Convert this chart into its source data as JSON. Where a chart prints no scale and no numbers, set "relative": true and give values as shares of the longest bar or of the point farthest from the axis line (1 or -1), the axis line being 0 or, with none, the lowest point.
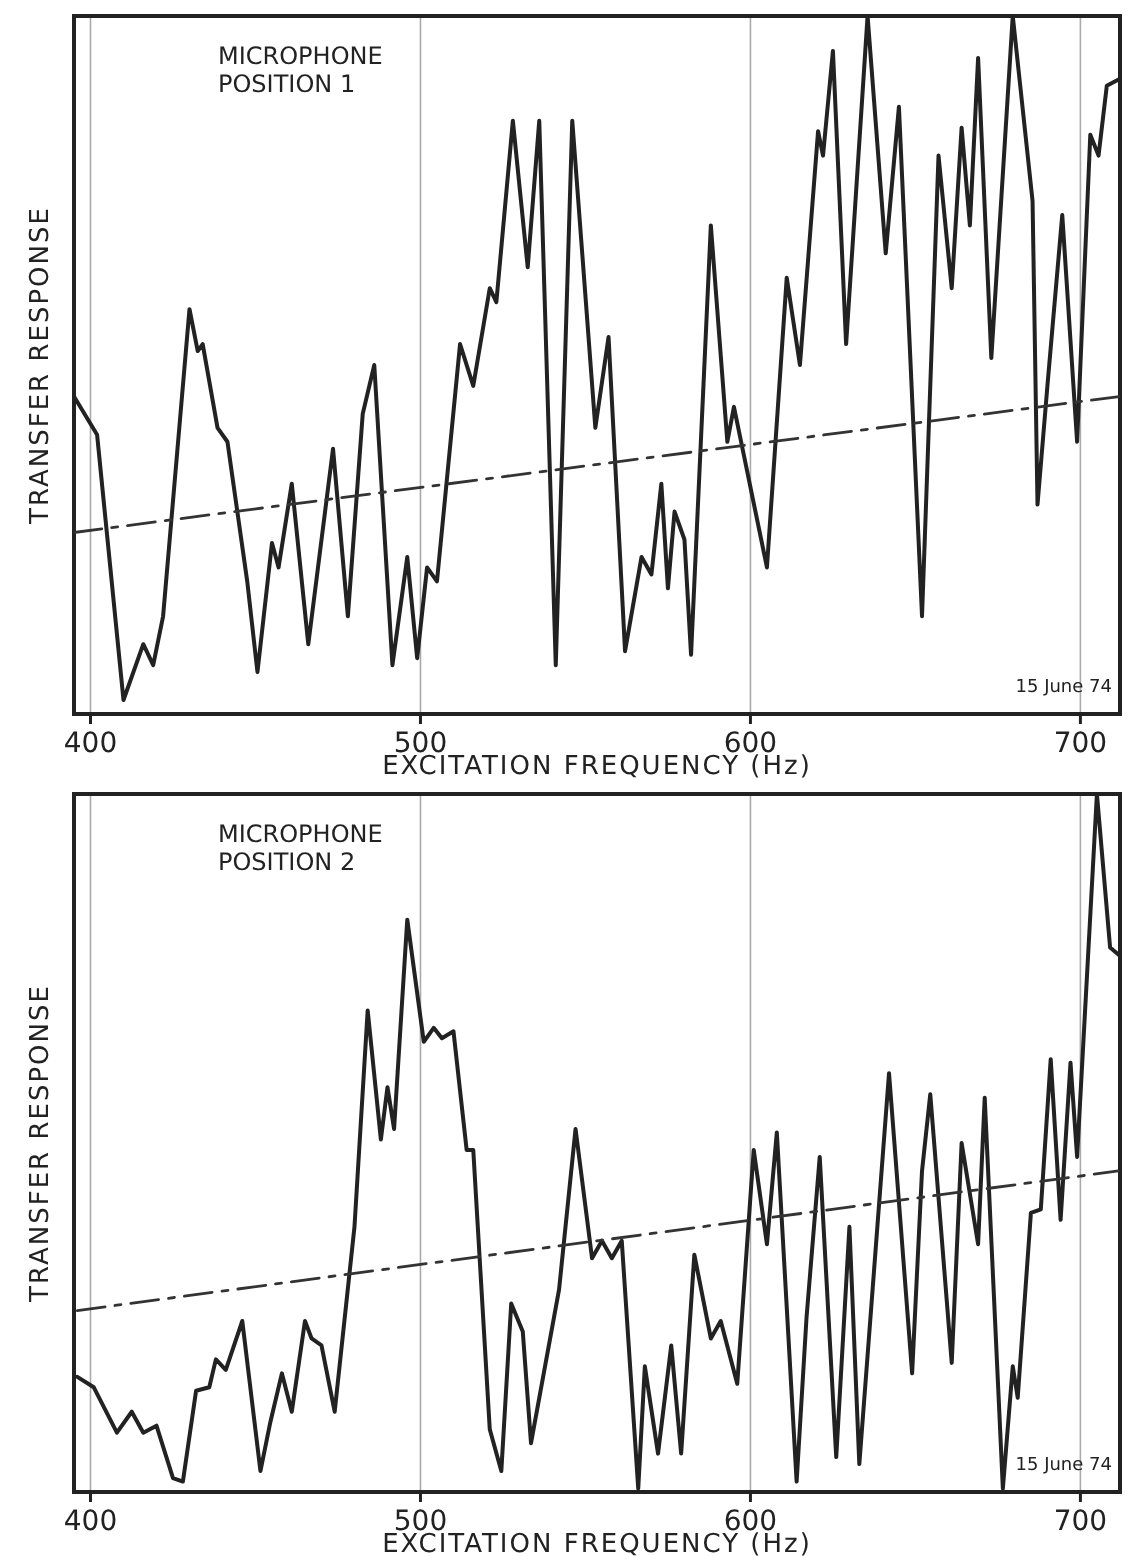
{
  "chart_data": [
    {
      "type": "line",
      "relative": true,
      "xlabel": "EXCITATION FREQUENCY (Hz)",
      "ylabel": "TRANSFER RESPONSE",
      "xlim": [
        395,
        712
      ],
      "xticks": [
        400,
        500,
        600,
        700
      ],
      "grid": "x",
      "marker": "none",
      "annotations": [
        "MICROPHONE POSITION 1",
        "15 June 74"
      ],
      "series": [
        {
          "color": "#222222",
          "line_style": "solid",
          "x": [
            395,
            402,
            410,
            416,
            419,
            422,
            430,
            432.5,
            434,
            438.5,
            441.5,
            447.5,
            450.6,
            455,
            457,
            461,
            466,
            473.5,
            478,
            482.5,
            486,
            491.5,
            496,
            499,
            502,
            505,
            512,
            516,
            521,
            523,
            528,
            532.5,
            536,
            541,
            546,
            553,
            557,
            562,
            567,
            570,
            573,
            575,
            577,
            580,
            582,
            588,
            593,
            595,
            605,
            611,
            615,
            620.5,
            622,
            625,
            629,
            635.5,
            641,
            645,
            652,
            657,
            661,
            664,
            666.5,
            669,
            673,
            679.5,
            685.5,
            687,
            690,
            694.5,
            699,
            703,
            705.5,
            708,
            712
          ],
          "values": [
            0.455,
            0.4,
            0.02,
            0.1,
            0.07,
            0.14,
            0.58,
            0.52,
            0.53,
            0.41,
            0.39,
            0.19,
            0.06,
            0.245,
            0.21,
            0.33,
            0.1,
            0.38,
            0.14,
            0.43,
            0.5,
            0.07,
            0.225,
            0.08,
            0.21,
            0.19,
            0.53,
            0.47,
            0.61,
            0.59,
            0.85,
            0.64,
            0.85,
            0.07,
            0.85,
            0.41,
            0.54,
            0.09,
            0.225,
            0.2,
            0.33,
            0.18,
            0.29,
            0.25,
            0.085,
            0.7,
            0.39,
            0.44,
            0.21,
            0.625,
            0.5,
            0.835,
            0.8,
            0.95,
            0.53,
            1,
            0.66,
            0.87,
            0.14,
            0.8,
            0.61,
            0.84,
            0.7,
            0.94,
            0.51,
            1,
            0.735,
            0.3,
            0.47,
            0.715,
            0.39,
            0.83,
            0.8,
            0.9,
            0.91
          ]
        },
        {
          "type": "line",
          "color": "#333333",
          "line_style": "dashed",
          "x": [
            395,
            712
          ],
          "values": [
            0.26,
            0.455
          ]
        }
      ]
    },
    {
      "type": "line",
      "relative": true,
      "xlabel": "EXCITATION FREQUENCY (Hz)",
      "ylabel": "TRANSFER RESPONSE",
      "xlim": [
        395,
        712
      ],
      "xticks": [
        400,
        500,
        600,
        700
      ],
      "grid": "x",
      "marker": "none",
      "annotations": [
        "MICROPHONE POSITION 2",
        "15 June 74"
      ],
      "series": [
        {
          "color": "#222222",
          "line_style": "solid",
          "x": [
            396,
            401,
            408,
            412.5,
            416,
            420,
            425,
            428,
            432,
            436,
            438,
            441,
            446,
            451.5,
            454.5,
            458,
            461,
            465,
            467,
            470,
            474,
            480,
            484,
            488,
            490,
            492,
            496,
            501,
            504,
            506.5,
            510,
            514,
            516,
            521,
            524.5,
            527.5,
            531,
            533.5,
            542,
            547,
            552,
            555,
            558,
            561,
            566,
            568,
            572,
            576,
            579,
            583,
            588,
            591,
            596,
            601,
            605,
            608,
            614,
            617,
            621,
            626,
            630,
            633,
            642,
            649,
            652,
            654.5,
            661,
            664,
            669,
            671,
            676.5,
            679.5,
            681,
            685,
            688,
            691,
            694,
            697,
            699,
            705,
            709,
            711.5
          ],
          "values": [
            0.165,
            0.15,
            0.085,
            0.115,
            0.085,
            0.095,
            0.02,
            0.015,
            0.145,
            0.15,
            0.19,
            0.175,
            0.245,
            0.03,
            0.1,
            0.17,
            0.115,
            0.245,
            0.22,
            0.21,
            0.115,
            0.38,
            0.69,
            0.505,
            0.58,
            0.52,
            0.82,
            0.645,
            0.665,
            0.65,
            0.66,
            0.49,
            0.49,
            0.09,
            0.03,
            0.27,
            0.23,
            0.07,
            0.29,
            0.52,
            0.335,
            0.36,
            0.335,
            0.36,
            0.005,
            0.18,
            0.055,
            0.21,
            0.055,
            0.34,
            0.22,
            0.245,
            0.155,
            0.49,
            0.355,
            0.515,
            0.015,
            0.25,
            0.48,
            0.05,
            0.38,
            0.04,
            0.6,
            0.17,
            0.46,
            0.57,
            0.185,
            0.5,
            0.355,
            0.565,
            0.005,
            0.18,
            0.135,
            0.4,
            0.405,
            0.62,
            0.39,
            0.615,
            0.48,
            1,
            0.78,
            0.77
          ]
        },
        {
          "type": "line",
          "color": "#333333",
          "line_style": "dashed",
          "x": [
            396,
            711.5
          ],
          "values": [
            0.26,
            0.46
          ]
        }
      ]
    }
  ]
}
